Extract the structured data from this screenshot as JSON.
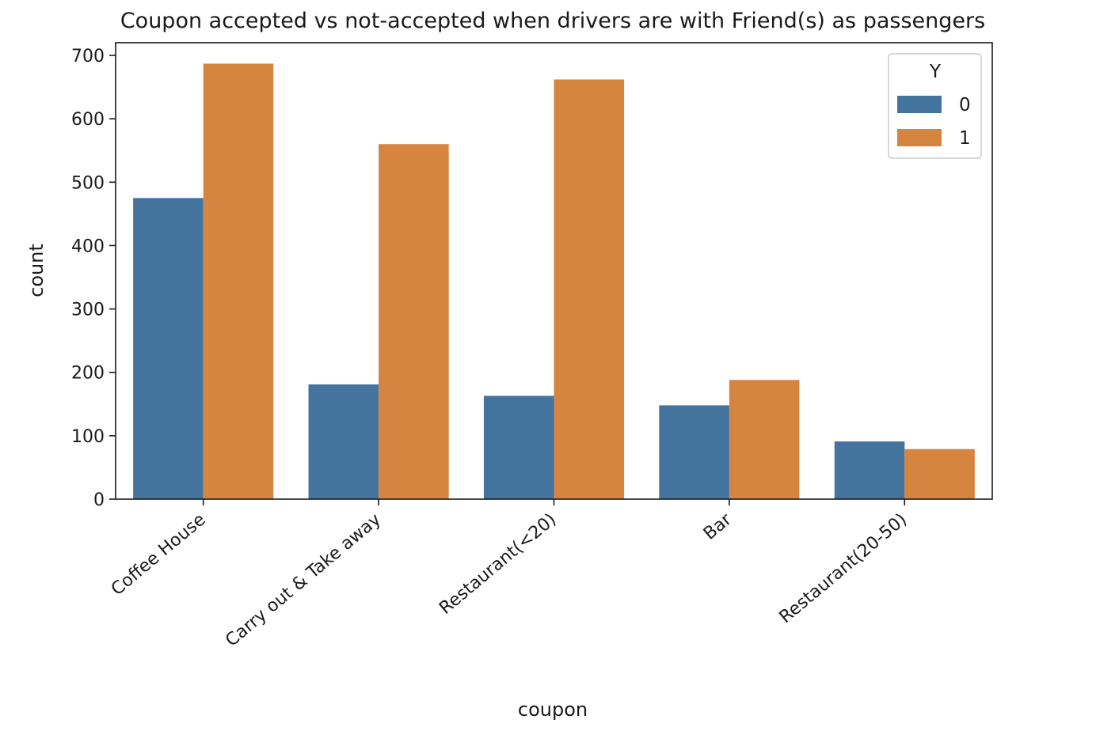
{
  "chart_data": {
    "type": "bar",
    "title": "Coupon accepted vs not-accepted when drivers are with Friend(s) as passengers",
    "xlabel": "coupon",
    "ylabel": "count",
    "categories": [
      "Coffee House",
      "Carry out & Take away",
      "Restaurant(<20)",
      "Bar",
      "Restaurant(20-50)"
    ],
    "series": [
      {
        "name": "0",
        "values": [
          475,
          181,
          163,
          148,
          91
        ],
        "color": "#44739e"
      },
      {
        "name": "1",
        "values": [
          687,
          560,
          662,
          188,
          79
        ],
        "color": "#d68540"
      }
    ],
    "ylim": [
      0,
      720
    ],
    "yticks": [
      0,
      100,
      200,
      300,
      400,
      500,
      600,
      700
    ],
    "legend": {
      "title": "Y",
      "position": "top-right"
    },
    "grid": false
  }
}
